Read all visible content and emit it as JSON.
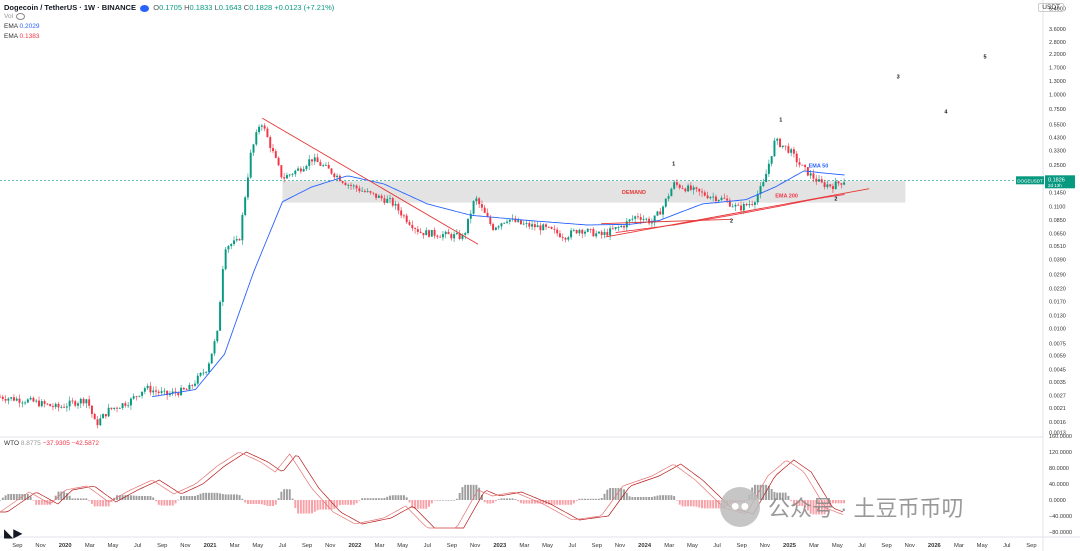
{
  "header": {
    "symbol": "Dogecoin / TetherUS · 1W · BINANCE",
    "open_label": "O",
    "open": "0.1705",
    "high_label": "H",
    "high": "0.1833",
    "low_label": "L",
    "low": "0.1643",
    "close_label": "C",
    "close": "0.1828",
    "change": "+0.0123 (+7.21%)",
    "vol": "Vol",
    "ema1_label": "EMA",
    "ema1_value": "0.2029",
    "ema2_label": "EMA",
    "ema2_value": "0.1383"
  },
  "currency_tag": "USDT",
  "price_tag": {
    "symbol": "DOGEUSDT",
    "price": "0.1826",
    "countdown": "2d 13h"
  },
  "oscillator": {
    "name": "WTO",
    "v1": "8.8775",
    "v2": "−37.9305",
    "v3": "−42.5872"
  },
  "watermark": "公众号 · 土豆币币叨",
  "colors": {
    "up": "#089981",
    "down": "#f23645",
    "ema50": "#2962ff",
    "ema200": "#f23645",
    "trend": "#e53935",
    "zone": "#d9d9d9"
  },
  "chart_data": [
    {
      "type": "candlestick",
      "scale": "log",
      "ylim": [
        0.0013,
        5.4
      ],
      "x_range": [
        "2019-07",
        "2026-09"
      ],
      "y_ticks": [
        "5.4000",
        "3.6000",
        "2.8000",
        "2.2000",
        "1.7000",
        "1.3000",
        "1.0000",
        "0.7500",
        "0.5500",
        "0.4300",
        "0.3300",
        "0.2500",
        "0.1900",
        "0.1450",
        "0.1100",
        "0.0850",
        "0.0650",
        "0.0510",
        "0.0390",
        "0.0290",
        "0.0220",
        "0.0170",
        "0.0130",
        "0.0100",
        "0.0075",
        "0.0059",
        "0.0045",
        "0.0035",
        "0.0027",
        "0.0021",
        "0.0016",
        "0.0013"
      ],
      "x_ticks": [
        {
          "label": "Sep",
          "t": 2019.67
        },
        {
          "label": "Nov",
          "t": 2019.83
        },
        {
          "label": "2020",
          "t": 2020.0
        },
        {
          "label": "Mar",
          "t": 2020.17
        },
        {
          "label": "May",
          "t": 2020.33
        },
        {
          "label": "Jul",
          "t": 2020.5
        },
        {
          "label": "Sep",
          "t": 2020.67
        },
        {
          "label": "Nov",
          "t": 2020.83
        },
        {
          "label": "2021",
          "t": 2021.0
        },
        {
          "label": "Mar",
          "t": 2021.17
        },
        {
          "label": "May",
          "t": 2021.33
        },
        {
          "label": "Jul",
          "t": 2021.5
        },
        {
          "label": "Sep",
          "t": 2021.67
        },
        {
          "label": "Nov",
          "t": 2021.83
        },
        {
          "label": "2022",
          "t": 2022.0
        },
        {
          "label": "Mar",
          "t": 2022.17
        },
        {
          "label": "May",
          "t": 2022.33
        },
        {
          "label": "Jul",
          "t": 2022.5
        },
        {
          "label": "Sep",
          "t": 2022.67
        },
        {
          "label": "Nov",
          "t": 2022.83
        },
        {
          "label": "2023",
          "t": 2023.0
        },
        {
          "label": "Mar",
          "t": 2023.17
        },
        {
          "label": "May",
          "t": 2023.33
        },
        {
          "label": "Jul",
          "t": 2023.5
        },
        {
          "label": "Sep",
          "t": 2023.67
        },
        {
          "label": "Nov",
          "t": 2023.83
        },
        {
          "label": "2024",
          "t": 2024.0
        },
        {
          "label": "Mar",
          "t": 2024.17
        },
        {
          "label": "May",
          "t": 2024.33
        },
        {
          "label": "Jul",
          "t": 2024.5
        },
        {
          "label": "Sep",
          "t": 2024.67
        },
        {
          "label": "Nov",
          "t": 2024.83
        },
        {
          "label": "2025",
          "t": 2025.0
        },
        {
          "label": "Mar",
          "t": 2025.17
        },
        {
          "label": "May",
          "t": 2025.33
        },
        {
          "label": "Jul",
          "t": 2025.5
        },
        {
          "label": "Sep",
          "t": 2025.67
        },
        {
          "label": "Nov",
          "t": 2025.83
        },
        {
          "label": "2026",
          "t": 2026.0
        },
        {
          "label": "Mar",
          "t": 2026.17
        },
        {
          "label": "May",
          "t": 2026.33
        },
        {
          "label": "Jul",
          "t": 2026.5
        },
        {
          "label": "Sep",
          "t": 2026.67
        }
      ],
      "price_path": [
        [
          2019.55,
          0.0026
        ],
        [
          2019.75,
          0.0024
        ],
        [
          2019.95,
          0.0021
        ],
        [
          2020.05,
          0.0023
        ],
        [
          2020.15,
          0.0025
        ],
        [
          2020.21,
          0.0015
        ],
        [
          2020.3,
          0.002
        ],
        [
          2020.45,
          0.0024
        ],
        [
          2020.55,
          0.0031
        ],
        [
          2020.7,
          0.0027
        ],
        [
          2020.85,
          0.003
        ],
        [
          2020.98,
          0.0046
        ],
        [
          2021.05,
          0.009
        ],
        [
          2021.1,
          0.05
        ],
        [
          2021.2,
          0.055
        ],
        [
          2021.28,
          0.3
        ],
        [
          2021.35,
          0.6
        ],
        [
          2021.42,
          0.35
        ],
        [
          2021.5,
          0.19
        ],
        [
          2021.62,
          0.23
        ],
        [
          2021.7,
          0.28
        ],
        [
          2021.83,
          0.22
        ],
        [
          2021.95,
          0.17
        ],
        [
          2022.1,
          0.14
        ],
        [
          2022.25,
          0.12
        ],
        [
          2022.35,
          0.087
        ],
        [
          2022.45,
          0.066
        ],
        [
          2022.6,
          0.063
        ],
        [
          2022.75,
          0.06
        ],
        [
          2022.83,
          0.13
        ],
        [
          2022.95,
          0.072
        ],
        [
          2023.05,
          0.086
        ],
        [
          2023.15,
          0.077
        ],
        [
          2023.3,
          0.072
        ],
        [
          2023.45,
          0.061
        ],
        [
          2023.55,
          0.07
        ],
        [
          2023.7,
          0.062
        ],
        [
          2023.85,
          0.075
        ],
        [
          2023.95,
          0.092
        ],
        [
          2024.05,
          0.08
        ],
        [
          2024.12,
          0.105
        ],
        [
          2024.2,
          0.17
        ],
        [
          2024.3,
          0.155
        ],
        [
          2024.4,
          0.14
        ],
        [
          2024.55,
          0.125
        ],
        [
          2024.65,
          0.105
        ],
        [
          2024.75,
          0.12
        ],
        [
          2024.82,
          0.17
        ],
        [
          2024.9,
          0.4
        ],
        [
          2025.0,
          0.33
        ],
        [
          2025.08,
          0.24
        ],
        [
          2025.15,
          0.2
        ],
        [
          2025.22,
          0.17
        ],
        [
          2025.3,
          0.165
        ],
        [
          2025.38,
          0.1828
        ]
      ],
      "ema50": [
        [
          2020.6,
          0.0026
        ],
        [
          2020.9,
          0.003
        ],
        [
          2021.1,
          0.006
        ],
        [
          2021.3,
          0.03
        ],
        [
          2021.5,
          0.12
        ],
        [
          2021.7,
          0.16
        ],
        [
          2021.95,
          0.2
        ],
        [
          2022.2,
          0.17
        ],
        [
          2022.5,
          0.115
        ],
        [
          2022.8,
          0.092
        ],
        [
          2023.2,
          0.083
        ],
        [
          2023.6,
          0.076
        ],
        [
          2023.9,
          0.077
        ],
        [
          2024.1,
          0.083
        ],
        [
          2024.4,
          0.115
        ],
        [
          2024.7,
          0.125
        ],
        [
          2024.9,
          0.16
        ],
        [
          2025.1,
          0.22
        ],
        [
          2025.25,
          0.21
        ],
        [
          2025.38,
          0.2029
        ]
      ],
      "ema200": [
        [
          2023.8,
          0.0655
        ],
        [
          2024.2,
          0.076
        ],
        [
          2024.6,
          0.092
        ],
        [
          2024.9,
          0.108
        ],
        [
          2025.2,
          0.128
        ],
        [
          2025.38,
          0.1383
        ]
      ],
      "demand_zone": {
        "t0": 2021.5,
        "t1": 2025.8,
        "y_top": 0.18,
        "y_bottom": 0.118,
        "label": "DEMAND"
      },
      "trendlines": [
        {
          "t0": 2021.36,
          "y0": 0.62,
          "t1": 2022.85,
          "y1": 0.052
        },
        {
          "t0": 2023.73,
          "y0": 0.06,
          "t1": 2025.55,
          "y1": 0.155
        },
        {
          "t0": 2023.7,
          "y0": 0.078,
          "t1": 2024.6,
          "y1": 0.085
        }
      ],
      "annotations": [
        {
          "text": "EMA 50",
          "t": 2025.2,
          "y": 0.235,
          "color": "#2962ff"
        },
        {
          "text": "EMA 200",
          "t": 2024.98,
          "y": 0.13,
          "color": "#f23645"
        },
        {
          "text": "1",
          "t": 2024.2,
          "y": 0.245,
          "color": "#131722"
        },
        {
          "text": "2",
          "t": 2024.6,
          "y": 0.08,
          "color": "#131722"
        },
        {
          "text": "1",
          "t": 2024.94,
          "y": 0.58,
          "color": "#131722"
        },
        {
          "text": "2",
          "t": 2025.32,
          "y": 0.123,
          "color": "#131722"
        },
        {
          "text": "3",
          "t": 2025.75,
          "y": 1.35,
          "color": "#131722"
        },
        {
          "text": "4",
          "t": 2026.08,
          "y": 0.68,
          "color": "#131722"
        },
        {
          "text": "5",
          "t": 2026.35,
          "y": 2.0,
          "color": "#131722"
        }
      ]
    },
    {
      "type": "oscillator",
      "ylim": [
        -80,
        140
      ],
      "y_ticks": [
        "160.0000",
        "120.0000",
        "80.0000",
        "40.0000",
        "0.0000",
        "−40.0000",
        "−80.0000"
      ],
      "wt1_path": [
        [
          2019.55,
          -30
        ],
        [
          2019.75,
          20
        ],
        [
          2019.9,
          -10
        ],
        [
          2020.0,
          25
        ],
        [
          2020.15,
          35
        ],
        [
          2020.3,
          -5
        ],
        [
          2020.45,
          25
        ],
        [
          2020.6,
          50
        ],
        [
          2020.75,
          15
        ],
        [
          2020.9,
          40
        ],
        [
          2021.05,
          85
        ],
        [
          2021.2,
          120
        ],
        [
          2021.35,
          95
        ],
        [
          2021.45,
          70
        ],
        [
          2021.55,
          115
        ],
        [
          2021.7,
          30
        ],
        [
          2021.85,
          -30
        ],
        [
          2022.0,
          -60
        ],
        [
          2022.2,
          -45
        ],
        [
          2022.35,
          -15
        ],
        [
          2022.5,
          -70
        ],
        [
          2022.7,
          -70
        ],
        [
          2022.85,
          25
        ],
        [
          2022.95,
          10
        ],
        [
          2023.1,
          20
        ],
        [
          2023.3,
          -10
        ],
        [
          2023.5,
          -50
        ],
        [
          2023.7,
          -40
        ],
        [
          2023.85,
          35
        ],
        [
          2024.05,
          60
        ],
        [
          2024.2,
          90
        ],
        [
          2024.35,
          50
        ],
        [
          2024.55,
          -20
        ],
        [
          2024.7,
          -35
        ],
        [
          2024.85,
          60
        ],
        [
          2024.98,
          100
        ],
        [
          2025.1,
          70
        ],
        [
          2025.25,
          -20
        ],
        [
          2025.38,
          -38
        ]
      ],
      "wt2_offset": -0.05,
      "histogram_hint": "momentum bars (grey positive, red negative)"
    }
  ]
}
